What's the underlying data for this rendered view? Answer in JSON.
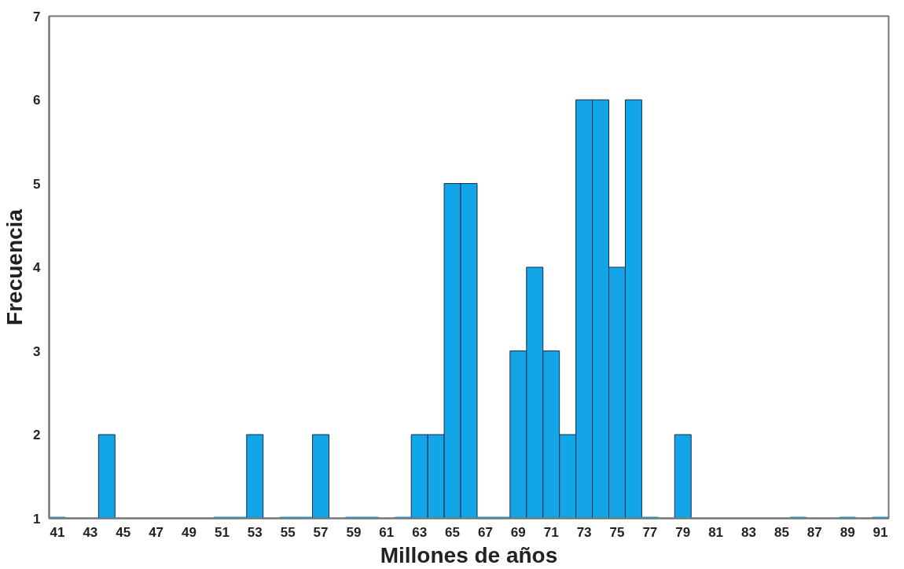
{
  "chart_data": {
    "type": "histogram",
    "xlabel": "Millones de años",
    "ylabel": "Frecuencia",
    "bins": [
      40.5,
      41.5,
      42.5,
      43.5,
      44.5,
      45.5,
      46.5,
      47.5,
      48.5,
      49.5,
      50.5,
      51.5,
      52.5,
      53.5,
      54.5,
      55.5,
      56.5,
      57.5,
      58.5,
      59.5,
      60.5,
      61.5,
      62.5,
      63.5,
      64.5,
      65.5,
      66.5,
      67.5,
      68.5,
      69.5,
      70.5,
      71.5,
      72.5,
      73.5,
      74.5,
      75.5,
      76.5,
      77.5,
      78.5,
      79.5,
      80.5,
      81.5,
      82.5,
      83.5,
      84.5,
      85.5,
      86.5,
      87.5,
      88.5,
      89.5,
      90.5,
      91.5
    ],
    "values": [
      1,
      null,
      null,
      2,
      null,
      null,
      null,
      null,
      null,
      null,
      1,
      1,
      2,
      null,
      1,
      1,
      2,
      null,
      1,
      1,
      null,
      1,
      2,
      2,
      5,
      5,
      1,
      1,
      3,
      4,
      3,
      2,
      6,
      6,
      4,
      6,
      1,
      null,
      2,
      null,
      null,
      null,
      null,
      null,
      null,
      1,
      null,
      null,
      1,
      null,
      1
    ],
    "color": "#12a6e8",
    "xlim": [
      40.5,
      91.5
    ],
    "ylim": [
      1,
      7
    ],
    "xticks": [
      41,
      43,
      45,
      47,
      49,
      51,
      53,
      55,
      57,
      59,
      61,
      63,
      65,
      67,
      69,
      71,
      73,
      75,
      77,
      79,
      81,
      83,
      85,
      87,
      89,
      91
    ],
    "yticks": [
      1,
      2,
      3,
      4,
      5,
      6,
      7
    ],
    "grid": false
  }
}
